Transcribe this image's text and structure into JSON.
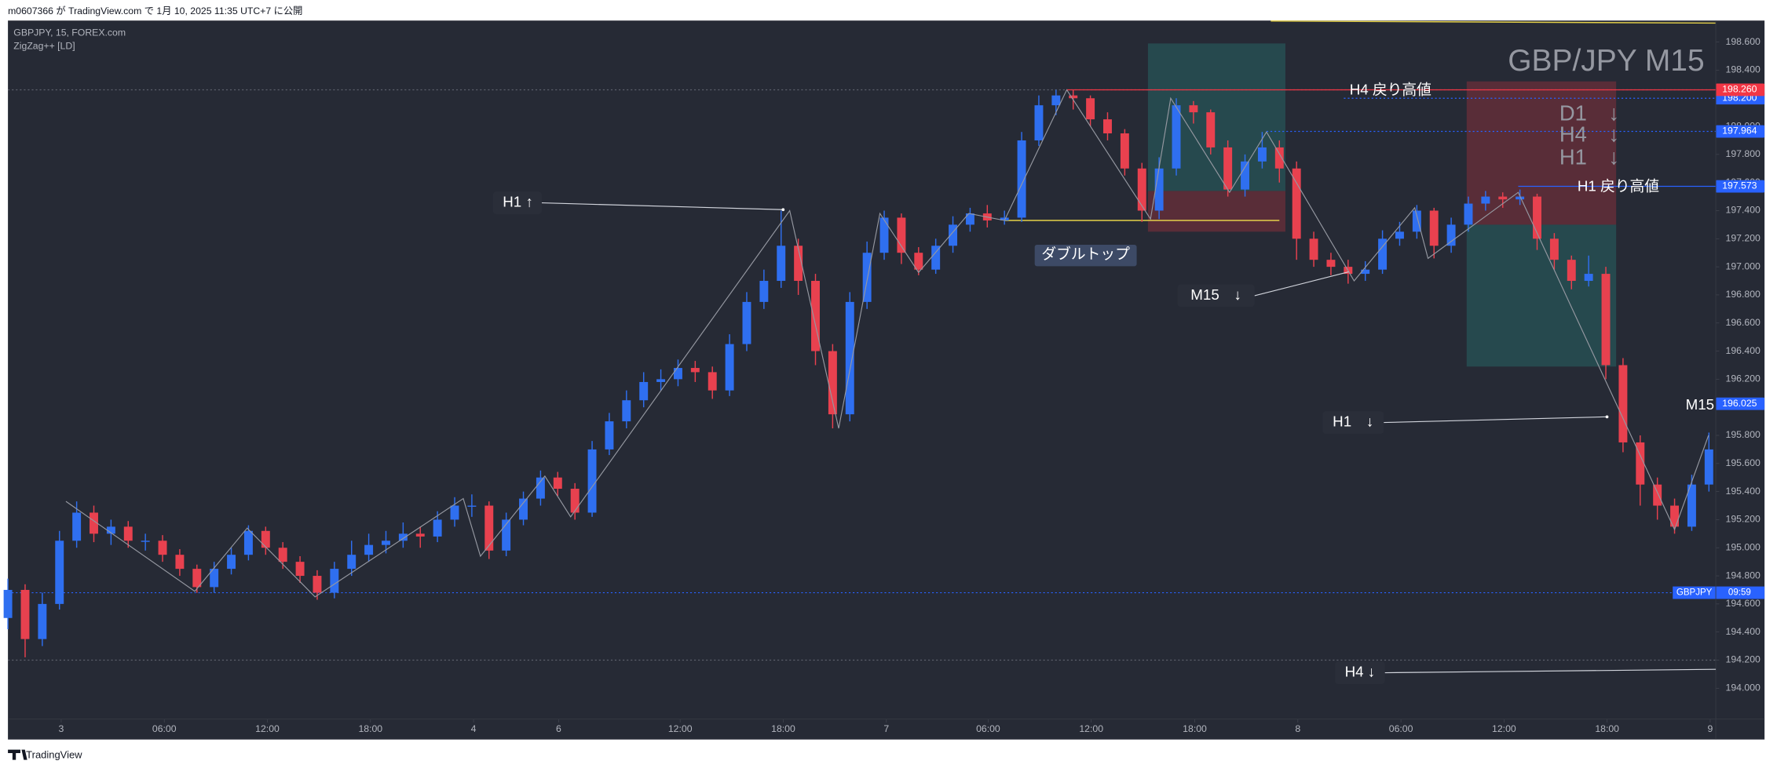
{
  "header": {
    "text": "m0607366 が TradingView.com で 1月 10, 2025 11:35 UTC+7 に公開",
    "brand": "TradingView"
  },
  "chart_data": {
    "type": "candlestick",
    "title": "GBP/JPY M15",
    "symbol_info": "GBPJPY, 15, FOREX.com",
    "indicator": "ZigZag++ [LD]",
    "up_color": "#2f6ff0",
    "down_color": "#e8414f",
    "zigzag_color": "#9598a1",
    "xlim": [
      0,
      397.6
    ],
    "ylim": [
      193.78,
      198.753
    ],
    "xticks": [
      {
        "value": 12.4,
        "label": "3"
      },
      {
        "value": 36.4,
        "label": "06:00"
      },
      {
        "value": 60.4,
        "label": "12:00"
      },
      {
        "value": 84.4,
        "label": "18:00"
      },
      {
        "value": 108.4,
        "label": "4"
      },
      {
        "value": 128.2,
        "label": "6"
      },
      {
        "value": 156.5,
        "label": "12:00"
      },
      {
        "value": 180.5,
        "label": "18:00"
      },
      {
        "value": 204.5,
        "label": "7"
      },
      {
        "value": 228.2,
        "label": "06:00"
      },
      {
        "value": 252.2,
        "label": "12:00"
      },
      {
        "value": 276.3,
        "label": "18:00"
      },
      {
        "value": 300.3,
        "label": "8"
      },
      {
        "value": 324.3,
        "label": "06:00"
      },
      {
        "value": 348.3,
        "label": "12:00"
      },
      {
        "value": 372.3,
        "label": "18:00"
      },
      {
        "value": 396.3,
        "label": "9"
      }
    ],
    "yticks": [
      {
        "value": 194.0,
        "label": "194.000"
      },
      {
        "value": 194.2,
        "label": "194.200"
      },
      {
        "value": 194.4,
        "label": "194.400"
      },
      {
        "value": 194.6,
        "label": "194.600"
      },
      {
        "value": 194.8,
        "label": "194.800"
      },
      {
        "value": 195.0,
        "label": "195.000"
      },
      {
        "value": 195.2,
        "label": "195.200"
      },
      {
        "value": 195.4,
        "label": "195.400"
      },
      {
        "value": 195.6,
        "label": "195.600"
      },
      {
        "value": 195.8,
        "label": "195.800"
      },
      {
        "value": 196.0,
        "label": "196.000"
      },
      {
        "value": 196.2,
        "label": "196.200"
      },
      {
        "value": 196.4,
        "label": "196.400"
      },
      {
        "value": 196.6,
        "label": "196.600"
      },
      {
        "value": 196.8,
        "label": "196.800"
      },
      {
        "value": 197.0,
        "label": "197.000"
      },
      {
        "value": 197.2,
        "label": "197.200"
      },
      {
        "value": 197.4,
        "label": "197.400"
      },
      {
        "value": 197.6,
        "label": "197.600"
      },
      {
        "value": 197.8,
        "label": "197.800"
      },
      {
        "value": 198.0,
        "label": "198.000"
      },
      {
        "value": 198.2,
        "label": "198.200"
      },
      {
        "value": 198.4,
        "label": "198.400"
      },
      {
        "value": 198.6,
        "label": "198.600"
      }
    ],
    "x": [
      0,
      4,
      8,
      12,
      16,
      20,
      24,
      28,
      32,
      36,
      40,
      44,
      48,
      52,
      56,
      60,
      64,
      68,
      72,
      76,
      80,
      84,
      88,
      92,
      96,
      100,
      104,
      108,
      112,
      116,
      120,
      124,
      128,
      132,
      136,
      140,
      144,
      148,
      152,
      156,
      160,
      164,
      168,
      172,
      176,
      180,
      184,
      188,
      192,
      196,
      200,
      204,
      208,
      212,
      216,
      220,
      224,
      228,
      232,
      236,
      240,
      244,
      248,
      252,
      256,
      260,
      264,
      268,
      272,
      276,
      280,
      284,
      288,
      292,
      296,
      300,
      304,
      308,
      312,
      316,
      320,
      324,
      328,
      332,
      336,
      340,
      344,
      348,
      352,
      356,
      360,
      364,
      368,
      372,
      376,
      380,
      384,
      388,
      392,
      396
    ],
    "open": [
      194.5,
      194.7,
      194.35,
      194.6,
      195.05,
      195.25,
      195.1,
      195.15,
      195.05,
      195.05,
      194.95,
      194.85,
      194.72,
      194.85,
      194.95,
      195.12,
      195.0,
      194.9,
      194.8,
      194.68,
      194.85,
      194.95,
      195.02,
      195.05,
      195.1,
      195.08,
      195.2,
      195.3,
      195.3,
      194.98,
      195.2,
      195.35,
      195.5,
      195.42,
      195.25,
      195.7,
      195.9,
      196.05,
      196.18,
      196.2,
      196.28,
      196.25,
      196.12,
      196.45,
      196.75,
      196.9,
      197.15,
      196.9,
      196.4,
      195.95,
      196.75,
      197.1,
      197.35,
      197.1,
      196.98,
      197.15,
      197.3,
      197.38,
      197.33,
      197.35,
      197.9,
      198.15,
      198.22,
      198.2,
      198.05,
      197.95,
      197.7,
      197.4,
      197.7,
      198.15,
      198.1,
      197.85,
      197.55,
      197.75,
      197.85,
      197.7,
      197.2,
      197.05,
      197.0,
      196.95,
      196.98,
      197.2,
      197.25,
      197.4,
      197.15,
      197.3,
      197.45,
      197.5,
      197.48,
      197.5,
      197.2,
      197.05,
      196.9,
      196.95,
      196.3,
      195.75,
      195.45,
      195.3,
      195.15,
      195.45
    ],
    "high": [
      194.78,
      194.74,
      194.68,
      195.12,
      195.33,
      195.3,
      195.2,
      195.19,
      195.1,
      195.09,
      194.99,
      194.88,
      194.9,
      195.0,
      195.16,
      195.15,
      195.04,
      194.94,
      194.84,
      194.9,
      195.05,
      195.1,
      195.12,
      195.18,
      195.15,
      195.26,
      195.36,
      195.38,
      195.33,
      195.25,
      195.4,
      195.55,
      195.54,
      195.46,
      195.76,
      195.96,
      196.12,
      196.25,
      196.27,
      196.34,
      196.33,
      196.29,
      196.52,
      196.82,
      196.98,
      197.4,
      197.2,
      196.95,
      196.45,
      196.82,
      197.18,
      197.4,
      197.38,
      197.14,
      197.2,
      197.36,
      197.42,
      197.44,
      197.4,
      197.96,
      198.22,
      198.26,
      198.26,
      198.22,
      198.1,
      197.98,
      197.74,
      197.78,
      198.2,
      198.18,
      198.12,
      197.9,
      197.8,
      197.96,
      197.9,
      197.75,
      197.25,
      197.1,
      197.05,
      197.04,
      197.26,
      197.32,
      197.44,
      197.42,
      197.35,
      197.5,
      197.54,
      197.53,
      197.55,
      197.52,
      197.24,
      197.08,
      197.08,
      197.0,
      196.35,
      195.8,
      195.5,
      195.35,
      195.52,
      195.82
    ],
    "low": [
      194.42,
      194.22,
      194.3,
      194.56,
      195.0,
      195.04,
      195.02,
      195.0,
      194.98,
      194.9,
      194.8,
      194.68,
      194.68,
      194.81,
      194.91,
      194.95,
      194.85,
      194.75,
      194.63,
      194.64,
      194.8,
      194.9,
      194.96,
      195.0,
      195.0,
      195.04,
      195.15,
      195.22,
      194.92,
      194.94,
      195.16,
      195.3,
      195.37,
      195.2,
      195.22,
      195.66,
      195.85,
      196.0,
      196.12,
      196.15,
      196.18,
      196.06,
      196.08,
      196.4,
      196.7,
      196.85,
      196.8,
      196.3,
      195.85,
      195.9,
      196.7,
      197.05,
      197.02,
      196.94,
      196.95,
      197.1,
      197.25,
      197.28,
      197.3,
      197.32,
      197.86,
      198.08,
      198.12,
      198.0,
      197.9,
      197.65,
      197.32,
      197.34,
      197.65,
      198.02,
      197.8,
      197.5,
      197.5,
      197.7,
      197.6,
      197.05,
      197.0,
      196.94,
      196.88,
      196.9,
      196.95,
      197.15,
      197.2,
      197.06,
      197.1,
      197.25,
      197.4,
      197.42,
      197.44,
      197.12,
      196.98,
      196.84,
      196.86,
      196.2,
      195.68,
      195.3,
      195.2,
      195.1,
      195.12,
      195.4
    ],
    "close": [
      194.7,
      194.35,
      194.6,
      195.05,
      195.25,
      195.1,
      195.15,
      195.05,
      195.05,
      194.95,
      194.85,
      194.72,
      194.85,
      194.95,
      195.12,
      195.0,
      194.9,
      194.8,
      194.68,
      194.85,
      194.95,
      195.02,
      195.05,
      195.1,
      195.08,
      195.2,
      195.3,
      195.3,
      194.98,
      195.2,
      195.35,
      195.5,
      195.42,
      195.25,
      195.7,
      195.9,
      196.05,
      196.18,
      196.2,
      196.28,
      196.25,
      196.12,
      196.45,
      196.75,
      196.9,
      197.15,
      196.9,
      196.4,
      195.95,
      196.75,
      197.1,
      197.35,
      197.1,
      196.98,
      197.15,
      197.3,
      197.38,
      197.33,
      197.35,
      197.9,
      198.15,
      198.22,
      198.2,
      198.05,
      197.95,
      197.7,
      197.4,
      197.7,
      198.15,
      198.1,
      197.85,
      197.55,
      197.75,
      197.85,
      197.7,
      197.2,
      197.05,
      197.0,
      196.95,
      196.98,
      197.2,
      197.25,
      197.4,
      197.15,
      197.3,
      197.45,
      197.5,
      197.48,
      197.5,
      197.2,
      197.05,
      196.9,
      196.95,
      196.3,
      195.75,
      195.45,
      195.3,
      195.15,
      195.45,
      195.7
    ],
    "zigzag": {
      "x": [
        13.5,
        43.5,
        55.7,
        71.5,
        106,
        110,
        125,
        131,
        182,
        193.4,
        203,
        212,
        223.7,
        232,
        246.5,
        266,
        270.7,
        284.4,
        293,
        313.4,
        327.5,
        330.6,
        351.6,
        388,
        395.9
      ],
      "y": [
        195.33,
        194.69,
        195.14,
        194.65,
        195.35,
        194.94,
        195.51,
        195.22,
        197.4,
        195.85,
        197.38,
        196.96,
        197.38,
        197.33,
        198.26,
        197.34,
        198.2,
        197.53,
        197.96,
        196.9,
        197.42,
        197.06,
        197.53,
        195.13,
        195.8
      ]
    },
    "positions": [
      {
        "x0": 265.4,
        "x1": 297.4,
        "top": 198.59,
        "entry": 197.54,
        "bottom": 197.25,
        "top_color": "#26a69a",
        "bottom_color": "#f23645"
      },
      {
        "x0": 339.6,
        "x1": 374.4,
        "top": 198.32,
        "entry": 197.3,
        "bottom": 196.29,
        "top_color": "#f23645",
        "bottom_color": "#26a69a"
      }
    ],
    "trendlines": [
      {
        "x0": 232,
        "y0": 197.33,
        "x1": 296,
        "y1": 197.33,
        "color": "#e5d14a"
      },
      {
        "x0": 294,
        "y0": 198.75,
        "x1": 397.6,
        "y1": 198.735,
        "color": "#e5d14a"
      }
    ],
    "levels": [
      {
        "value": 198.26,
        "x0": 0,
        "color": "#5d606b",
        "style": "dotted"
      },
      {
        "value": 194.2,
        "x0": 0,
        "color": "#5d606b",
        "style": "dotted"
      },
      {
        "value": 194.68,
        "x0": 0,
        "color": "#2962ff",
        "style": "dotted",
        "label": "GBPJPY",
        "time": "09:59"
      },
      {
        "value": 198.2,
        "x0": 311,
        "color": "#2962ff",
        "style": "dotted",
        "label": "198.200"
      },
      {
        "value": 197.964,
        "x0": 293,
        "color": "#2962ff",
        "style": "dotted",
        "label": "197.964"
      },
      {
        "value": 197.573,
        "x0": 351.6,
        "color": "#2962ff",
        "style": "solid",
        "label": "197.573"
      },
      {
        "value": 196.025,
        "x0": 397.6,
        "color": "#2962ff",
        "style": "solid",
        "label": "196.025"
      },
      {
        "value": 198.26,
        "x0": 246.5,
        "color": "#f23645",
        "style": "solid",
        "label": "198.260"
      }
    ],
    "annotations": {
      "h1_up": "H1 ↑",
      "double_top": "ダブルトップ",
      "m15_down": "M15　↓",
      "h1_down": "H1　↓",
      "h4_down": "H4 ↓",
      "h4_high": "H4 戻り高値",
      "h1_high": "H1 戻り高値",
      "m15": "M15",
      "d1": "D1　↓",
      "h4": "H4　↓",
      "h1": "H1　↓"
    }
  }
}
